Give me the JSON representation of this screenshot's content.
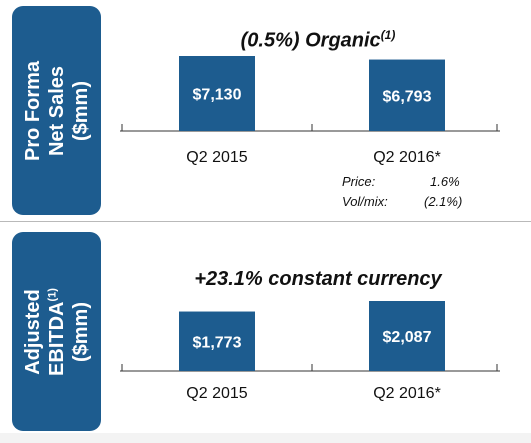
{
  "top_panel": {
    "side_label_line1": "Pro Forma",
    "side_label_line2": "Net Sales",
    "side_label_line3": "($mm)",
    "headline": "(0.5%) Organic",
    "headline_sup": "(1)",
    "price_label": "Price:",
    "price_value": "1.6%",
    "volmix_label": "Vol/mix:",
    "volmix_value": "(2.1%)"
  },
  "bottom_panel": {
    "side_label_line1": "Adjusted",
    "side_label_line2": "EBITDA",
    "side_label_sup": "(1)",
    "side_label_line3": "($mm)",
    "headline": "+23.1% constant currency"
  },
  "colors": {
    "bar": "#1d5c8f",
    "side_label": "#1d5c8f",
    "bar_text": "#ffffff"
  },
  "chart_data": [
    {
      "type": "bar",
      "categories": [
        "Q2 2015",
        "Q2 2016*"
      ],
      "values": [
        7130,
        6793
      ],
      "data_labels": [
        "$7,130",
        "$6,793"
      ],
      "title": "(0.5%) Organic(1)",
      "ylabel": "Pro Forma Net Sales ($mm)"
    },
    {
      "type": "bar",
      "categories": [
        "Q2 2015",
        "Q2 2016*"
      ],
      "values": [
        1773,
        2087
      ],
      "data_labels": [
        "$1,773",
        "$2,087"
      ],
      "title": "+23.1% constant currency",
      "ylabel": "Adjusted EBITDA(1) ($mm)"
    }
  ]
}
